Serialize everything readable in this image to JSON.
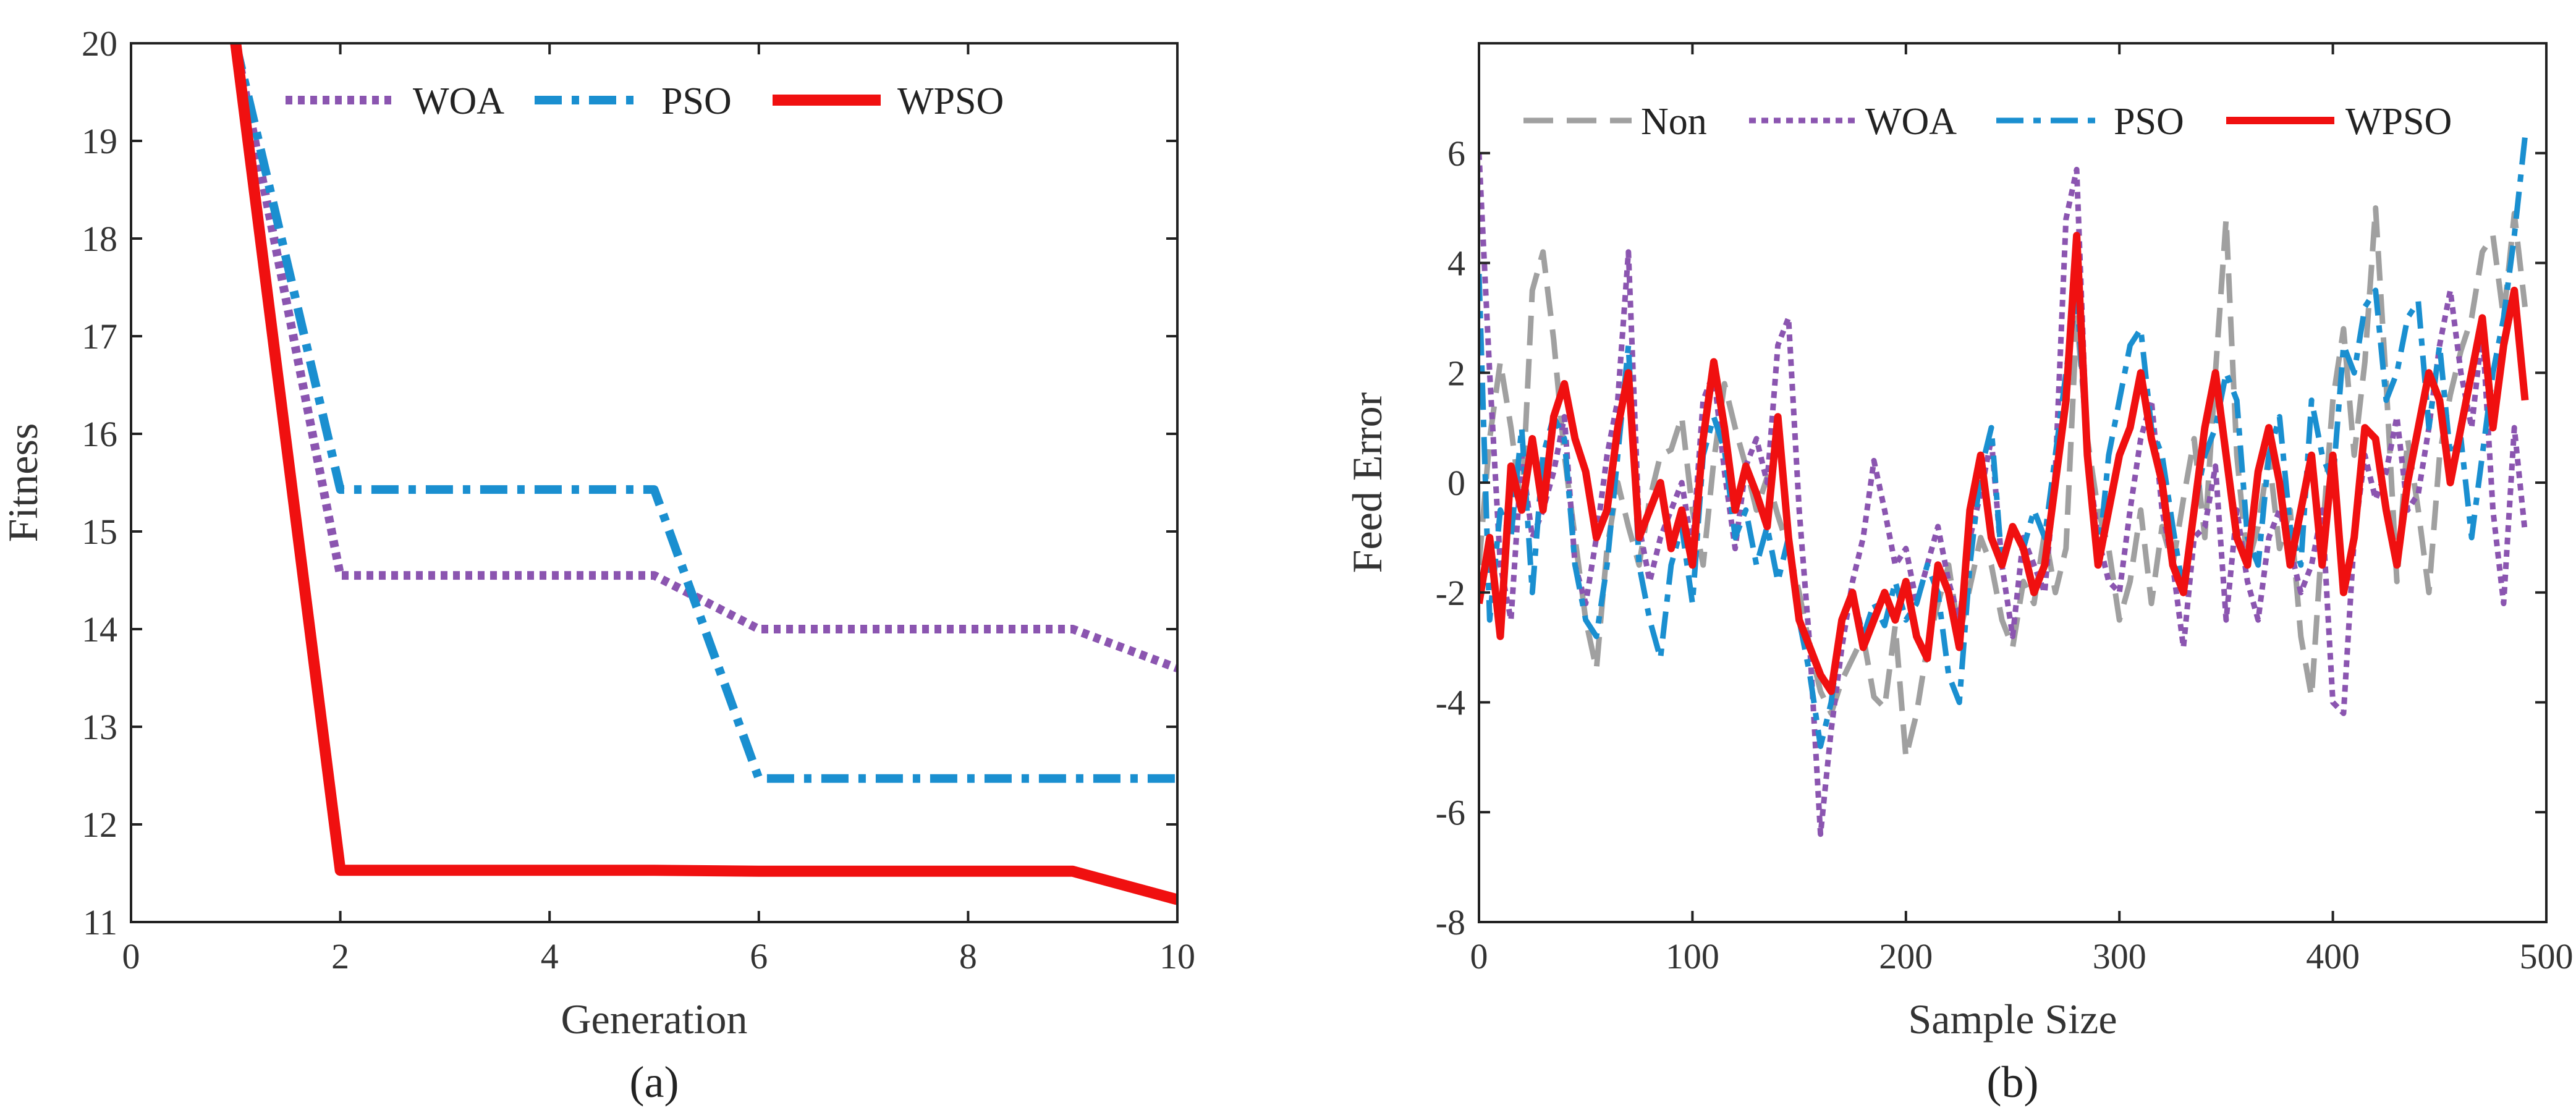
{
  "chart_data": [
    {
      "type": "line",
      "panel_label": "(a)",
      "xlabel": "Generation",
      "ylabel": "Fitness",
      "xlim": [
        0,
        10
      ],
      "ylim": [
        11,
        20
      ],
      "xticks": [
        0,
        2,
        4,
        6,
        8,
        10
      ],
      "yticks": [
        11,
        12,
        13,
        14,
        15,
        16,
        17,
        18,
        19,
        20
      ],
      "legend_position": "top",
      "series": [
        {
          "name": "WOA",
          "color": "#8B55B0",
          "style": "dotted",
          "x": [
            1,
            2,
            3,
            4,
            5,
            6,
            7,
            8,
            9,
            10
          ],
          "y": [
            20,
            14.55,
            14.55,
            14.55,
            14.55,
            14.0,
            14.0,
            14.0,
            14.0,
            13.6
          ]
        },
        {
          "name": "PSO",
          "color": "#1A8FD0",
          "style": "dashdot",
          "x": [
            1,
            2,
            3,
            4,
            5,
            6,
            7,
            8,
            9,
            10
          ],
          "y": [
            20,
            15.43,
            15.43,
            15.43,
            15.43,
            12.47,
            12.47,
            12.47,
            12.47,
            12.47
          ]
        },
        {
          "name": "WPSO",
          "color": "#F01010",
          "style": "solid",
          "x": [
            1,
            2,
            3,
            4,
            5,
            6,
            7,
            8,
            9,
            10
          ],
          "y": [
            20,
            11.53,
            11.53,
            11.53,
            11.53,
            11.52,
            11.52,
            11.52,
            11.52,
            11.23
          ]
        }
      ]
    },
    {
      "type": "line",
      "panel_label": "(b)",
      "xlabel": "Sample Size",
      "ylabel": "Feed Error",
      "xlim": [
        0,
        500
      ],
      "ylim": [
        -8,
        8
      ],
      "xticks": [
        0,
        100,
        200,
        300,
        400,
        500
      ],
      "yticks": [
        -8,
        -6,
        -4,
        -2,
        0,
        2,
        4,
        6
      ],
      "legend_position": "top",
      "series": [
        {
          "name": "Non",
          "color": "#A0A0A0",
          "style": "dashed",
          "x": [
            0,
            5,
            10,
            15,
            20,
            25,
            30,
            35,
            40,
            45,
            50,
            55,
            60,
            65,
            70,
            75,
            80,
            85,
            90,
            95,
            100,
            105,
            110,
            115,
            120,
            125,
            130,
            135,
            140,
            145,
            150,
            155,
            160,
            165,
            170,
            175,
            180,
            185,
            190,
            195,
            200,
            205,
            210,
            215,
            220,
            225,
            230,
            235,
            240,
            245,
            250,
            255,
            260,
            265,
            270,
            275,
            280,
            285,
            290,
            295,
            300,
            305,
            310,
            315,
            320,
            325,
            330,
            335,
            340,
            345,
            350,
            355,
            360,
            365,
            370,
            375,
            380,
            385,
            390,
            395,
            400,
            405,
            410,
            415,
            420,
            425,
            430,
            435,
            440,
            445,
            450,
            455,
            460,
            465,
            470,
            475,
            480,
            485,
            490
          ],
          "y": [
            -1.5,
            0.8,
            2.2,
            1.0,
            -0.5,
            3.5,
            4.2,
            2.6,
            0.5,
            -1.0,
            -2.5,
            -3.4,
            -1.2,
            0.0,
            -0.8,
            -1.5,
            -0.3,
            0.5,
            0.6,
            1.2,
            -0.5,
            -1.5,
            0.4,
            1.8,
            1.0,
            0.3,
            -0.5,
            0.1,
            -0.6,
            -1.2,
            -2.0,
            -3.0,
            -3.8,
            -4.2,
            -3.6,
            -3.2,
            -2.8,
            -3.9,
            -4.1,
            -2.6,
            -5.0,
            -4.2,
            -3.0,
            -2.2,
            -1.5,
            -2.8,
            -1.9,
            -1.0,
            -1.5,
            -2.5,
            -3.0,
            -1.8,
            -2.2,
            -0.9,
            -2.0,
            -1.2,
            3.0,
            0.8,
            -0.5,
            -1.2,
            -2.5,
            -1.8,
            -0.5,
            -2.2,
            -0.8,
            -1.5,
            -0.3,
            0.8,
            -1.0,
            2.0,
            4.8,
            0.5,
            -1.5,
            -0.8,
            0.5,
            -1.2,
            -0.5,
            -2.8,
            -3.9,
            -1.0,
            1.5,
            2.8,
            0.5,
            2.2,
            5.0,
            1.8,
            -1.8,
            0.8,
            -0.5,
            -2.0,
            0.5,
            1.6,
            2.4,
            3.0,
            4.2,
            4.5,
            3.0,
            4.9,
            3.2
          ]
        },
        {
          "name": "WOA",
          "color": "#8B55B0",
          "style": "dotted",
          "x": [
            0,
            5,
            10,
            15,
            20,
            25,
            30,
            35,
            40,
            45,
            50,
            55,
            60,
            65,
            70,
            75,
            80,
            85,
            90,
            95,
            100,
            105,
            110,
            115,
            120,
            125,
            130,
            135,
            140,
            145,
            150,
            155,
            160,
            165,
            170,
            175,
            180,
            185,
            190,
            195,
            200,
            205,
            210,
            215,
            220,
            225,
            230,
            235,
            240,
            245,
            250,
            255,
            260,
            265,
            270,
            275,
            280,
            285,
            290,
            295,
            300,
            305,
            310,
            315,
            320,
            325,
            330,
            335,
            340,
            345,
            350,
            355,
            360,
            365,
            370,
            375,
            380,
            385,
            390,
            395,
            400,
            405,
            410,
            415,
            420,
            425,
            430,
            435,
            440,
            445,
            450,
            455,
            460,
            465,
            470,
            475,
            480,
            485,
            490
          ],
          "y": [
            6.0,
            2.0,
            -1.5,
            -2.5,
            0.5,
            -1.0,
            -0.5,
            0.2,
            1.2,
            -1.5,
            -2.2,
            -1.0,
            0.5,
            1.5,
            4.2,
            -0.8,
            -1.8,
            -1.0,
            -0.5,
            0.0,
            -1.2,
            1.5,
            2.0,
            0.2,
            -1.2,
            0.3,
            0.8,
            0.0,
            2.5,
            3.0,
            -0.5,
            -3.0,
            -6.4,
            -4.5,
            -3.0,
            -1.8,
            -1.0,
            0.4,
            -0.5,
            -1.5,
            -1.2,
            -2.2,
            -1.5,
            -0.8,
            -1.8,
            -2.5,
            -1.0,
            -0.2,
            0.8,
            -1.5,
            -2.8,
            -1.0,
            -1.5,
            -2.0,
            0.2,
            4.8,
            5.7,
            0.5,
            -1.0,
            -1.8,
            -2.0,
            -0.5,
            0.8,
            1.5,
            -0.5,
            -1.5,
            -3.0,
            -1.0,
            -0.8,
            0.3,
            -2.5,
            -0.5,
            -1.8,
            -2.5,
            -1.0,
            -0.5,
            -1.2,
            -2.0,
            -1.5,
            -0.5,
            -4.0,
            -4.2,
            -1.0,
            0.5,
            -0.3,
            0.2,
            1.2,
            -0.5,
            -0.2,
            1.0,
            2.5,
            3.5,
            2.0,
            1.0,
            2.8,
            -0.5,
            -2.2,
            1.0,
            -0.9
          ]
        },
        {
          "name": "PSO",
          "color": "#1A8FD0",
          "style": "dashdot",
          "x": [
            0,
            5,
            10,
            15,
            20,
            25,
            30,
            35,
            40,
            45,
            50,
            55,
            60,
            65,
            70,
            75,
            80,
            85,
            90,
            95,
            100,
            105,
            110,
            115,
            120,
            125,
            130,
            135,
            140,
            145,
            150,
            155,
            160,
            165,
            170,
            175,
            180,
            185,
            190,
            195,
            200,
            205,
            210,
            215,
            220,
            225,
            230,
            235,
            240,
            245,
            250,
            255,
            260,
            265,
            270,
            275,
            280,
            285,
            290,
            295,
            300,
            305,
            310,
            315,
            320,
            325,
            330,
            335,
            340,
            345,
            350,
            355,
            360,
            365,
            370,
            375,
            380,
            385,
            390,
            395,
            400,
            405,
            410,
            415,
            420,
            425,
            430,
            435,
            440,
            445,
            450,
            455,
            460,
            465,
            470,
            475,
            480,
            485,
            490
          ],
          "y": [
            3.8,
            -2.5,
            -0.5,
            -1.0,
            1.0,
            -2.0,
            0.5,
            1.2,
            0.8,
            -1.5,
            -2.5,
            -2.8,
            -1.5,
            0.5,
            2.5,
            -1.5,
            -2.5,
            -3.2,
            -1.5,
            -0.8,
            -2.2,
            0.5,
            1.2,
            0.6,
            -1.0,
            -0.5,
            -1.5,
            -0.8,
            -1.8,
            -1.0,
            -2.5,
            -3.5,
            -4.8,
            -4.0,
            -2.5,
            -2.0,
            -2.8,
            -2.2,
            -2.6,
            -1.8,
            -2.5,
            -2.2,
            -1.5,
            -2.0,
            -3.5,
            -4.0,
            -1.5,
            0.2,
            1.0,
            -1.5,
            -0.8,
            -1.2,
            -0.5,
            -1.0,
            0.5,
            2.0,
            3.5,
            0.5,
            -1.5,
            0.5,
            1.5,
            2.5,
            2.8,
            1.0,
            0.5,
            -0.8,
            -2.0,
            -0.5,
            0.5,
            1.0,
            2.0,
            1.5,
            -1.0,
            -1.5,
            0.5,
            1.2,
            -0.8,
            -1.5,
            1.5,
            0.5,
            0.0,
            2.5,
            2.0,
            3.2,
            3.5,
            1.5,
            2.0,
            3.0,
            3.3,
            1.0,
            2.5,
            0.5,
            0.8,
            -1.0,
            0.5,
            2.0,
            3.0,
            4.5,
            6.3
          ]
        },
        {
          "name": "WPSO",
          "color": "#F01010",
          "style": "solid",
          "x": [
            0,
            5,
            10,
            15,
            20,
            25,
            30,
            35,
            40,
            45,
            50,
            55,
            60,
            65,
            70,
            75,
            80,
            85,
            90,
            95,
            100,
            105,
            110,
            115,
            120,
            125,
            130,
            135,
            140,
            145,
            150,
            155,
            160,
            165,
            170,
            175,
            180,
            185,
            190,
            195,
            200,
            205,
            210,
            215,
            220,
            225,
            230,
            235,
            240,
            245,
            250,
            255,
            260,
            265,
            270,
            275,
            280,
            285,
            290,
            295,
            300,
            305,
            310,
            315,
            320,
            325,
            330,
            335,
            340,
            345,
            350,
            355,
            360,
            365,
            370,
            375,
            380,
            385,
            390,
            395,
            400,
            405,
            410,
            415,
            420,
            425,
            430,
            435,
            440,
            445,
            450,
            455,
            460,
            465,
            470,
            475,
            480,
            485,
            490
          ],
          "y": [
            -2.2,
            -1.0,
            -2.8,
            0.3,
            -0.5,
            0.8,
            -0.5,
            1.2,
            1.8,
            0.8,
            0.2,
            -1.0,
            -0.5,
            1.0,
            2.0,
            -1.0,
            -0.5,
            0.0,
            -1.2,
            -0.5,
            -1.5,
            0.8,
            2.2,
            1.0,
            -0.5,
            0.3,
            -0.2,
            -0.8,
            1.2,
            -1.0,
            -2.5,
            -3.0,
            -3.5,
            -3.8,
            -2.5,
            -2.0,
            -3.0,
            -2.5,
            -2.0,
            -2.5,
            -1.8,
            -2.8,
            -3.2,
            -1.5,
            -2.0,
            -3.0,
            -0.5,
            0.5,
            -1.0,
            -1.5,
            -0.8,
            -1.2,
            -2.0,
            -1.5,
            0.0,
            1.5,
            4.5,
            0.5,
            -1.5,
            -0.5,
            0.5,
            1.0,
            2.0,
            0.8,
            0.0,
            -1.5,
            -2.0,
            -0.5,
            1.0,
            2.0,
            0.5,
            -1.0,
            -1.5,
            0.2,
            1.0,
            0.0,
            -1.5,
            -0.5,
            0.5,
            -1.5,
            0.5,
            -2.0,
            -1.0,
            1.0,
            0.8,
            -0.5,
            -1.5,
            0.0,
            1.0,
            2.0,
            1.5,
            0.0,
            1.0,
            2.0,
            3.0,
            1.0,
            2.5,
            3.5,
            1.5
          ]
        }
      ]
    }
  ]
}
